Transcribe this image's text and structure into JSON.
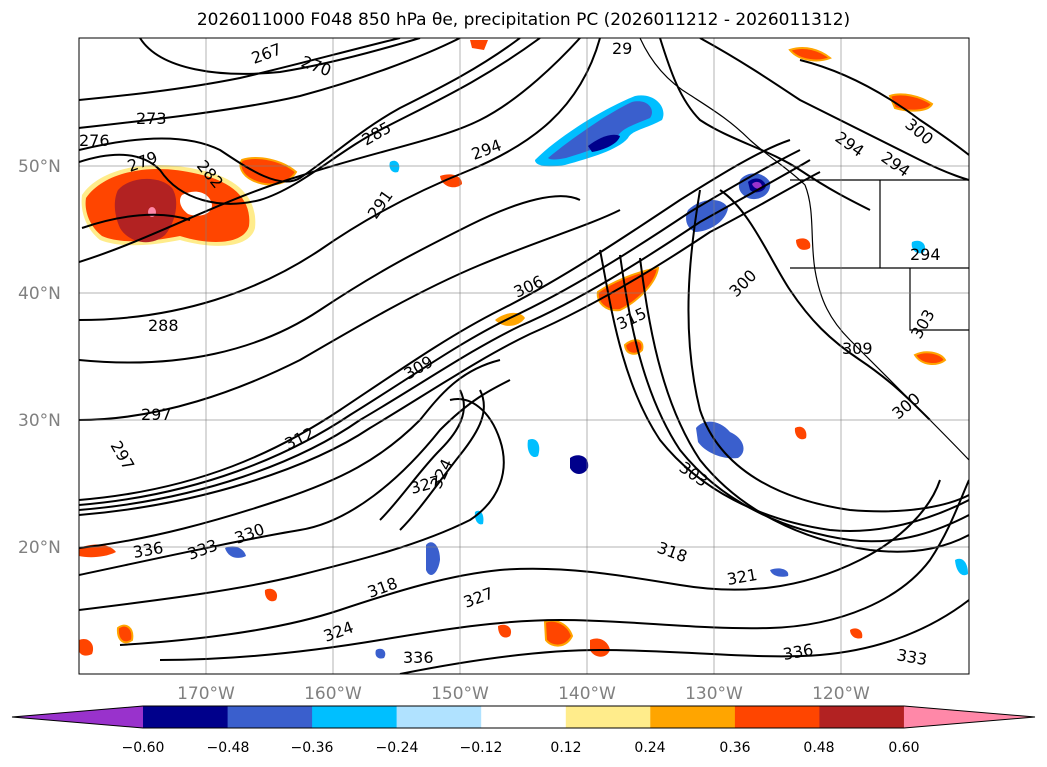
{
  "title": "2026011000 F048 850 hPa θe, precipitation PC (2026011212 - 2026011312)",
  "map": {
    "lat_ticks": [
      "50°N",
      "40°N",
      "30°N",
      "20°N"
    ],
    "lon_ticks": [
      "170°W",
      "160°W",
      "150°W",
      "140°W",
      "130°W",
      "120°W"
    ],
    "grid": true
  },
  "contour_labels": [
    "267",
    "270",
    "273",
    "276",
    "279",
    "282",
    "285",
    "291",
    "294",
    "288",
    "297",
    "297",
    "306",
    "309",
    "312",
    "315",
    "300",
    "294",
    "294",
    "300",
    "29",
    "294",
    "303",
    "318",
    "321",
    "324",
    "327",
    "318",
    "324",
    "327",
    "330",
    "333",
    "336",
    "336",
    "336",
    "333",
    "303",
    "300",
    "309"
  ],
  "colorbar": {
    "tick_labels": [
      "−0.60",
      "−0.48",
      "−0.36",
      "−0.24",
      "−0.12",
      "0.12",
      "0.24",
      "0.36",
      "0.48",
      "0.60"
    ],
    "colors": [
      "#9932CC",
      "#00008B",
      "#3A5FCD",
      "#00BFFF",
      "#B0E2FF",
      "#FFFFFF",
      "#FFEC8B",
      "#FFA500",
      "#FF4500",
      "#B22222",
      "#FF88A8"
    ],
    "extend": "both"
  }
}
